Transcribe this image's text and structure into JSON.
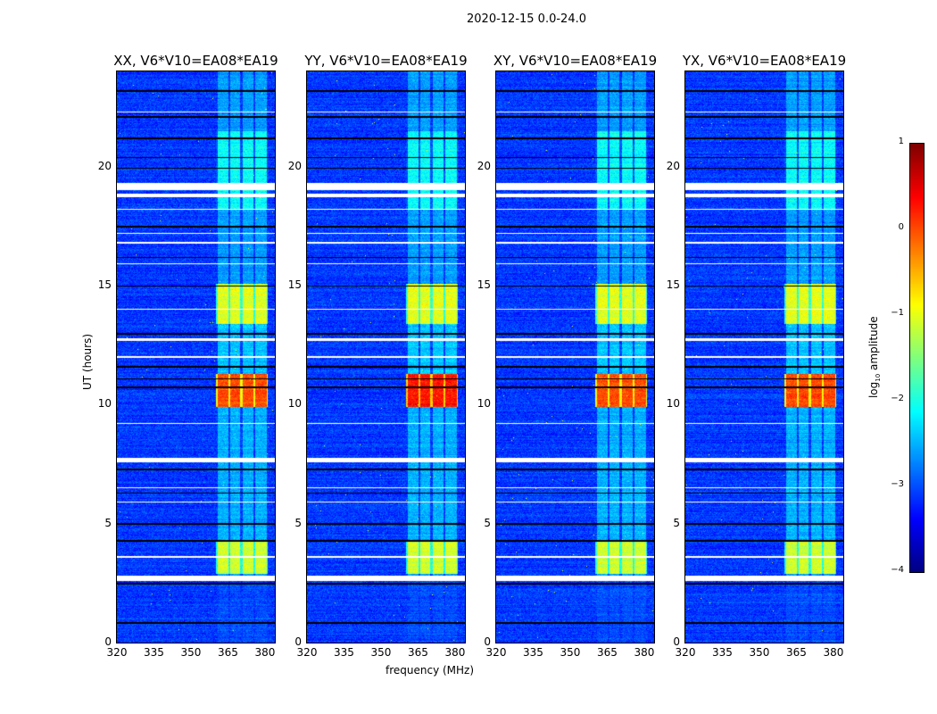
{
  "chart_data": {
    "type": "heatmap",
    "title": "2020-12-15 0.0-24.0",
    "xlabel": "frequency (MHz)",
    "ylabel": "UT (hours)",
    "xlim": [
      320,
      384
    ],
    "ylim": [
      0,
      24
    ],
    "xticks": [
      320,
      335,
      350,
      365,
      380
    ],
    "yticks": [
      0,
      5,
      10,
      15,
      20
    ],
    "colormap": "jet",
    "colorbar": {
      "label_main": "log",
      "label_sub": "10",
      "label_rest": " amplitude",
      "range": [
        -4,
        1
      ],
      "ticks": [
        "1",
        "0",
        "−1",
        "−2",
        "−3",
        "−4"
      ],
      "tick_values": [
        1,
        0,
        -1,
        -2,
        -3,
        -4
      ]
    },
    "panels": [
      {
        "title": "XX, V6*V10=EA08*EA19",
        "strong_flare": false
      },
      {
        "title": "YY, V6*V10=EA08*EA19",
        "strong_flare": true
      },
      {
        "title": "XY, V6*V10=EA08*EA19",
        "strong_flare": false
      },
      {
        "title": "YX, V6*V10=EA08*EA19",
        "strong_flare": false
      }
    ],
    "background_level": -3.1,
    "active_subbands_mhz": [
      [
        360.5,
        365
      ],
      [
        365.6,
        369.6
      ],
      [
        370.8,
        375
      ],
      [
        376,
        380.5
      ]
    ],
    "time_features": [
      {
        "ut": [
          2.9,
          4.3
        ],
        "level": -1.1
      },
      {
        "ut": [
          9.9,
          11.3
        ],
        "level": 0.0
      },
      {
        "ut": [
          13.4,
          15.1
        ],
        "level": -1.0
      },
      {
        "ut": [
          18.2,
          21.5
        ],
        "level": -2.1
      },
      {
        "ut": [
          4.3,
          9.9
        ],
        "level": -2.5
      },
      {
        "ut": [
          11.3,
          13.4
        ],
        "level": -2.4
      },
      {
        "ut": [
          15.1,
          18.2
        ],
        "level": -2.6
      },
      {
        "ut": [
          21.5,
          24
        ],
        "level": -2.6
      },
      {
        "ut": [
          0,
          2.6
        ],
        "level": -3.0
      }
    ],
    "flagged_ut": [
      [
        2.6,
        2.85
      ],
      [
        7.6,
        7.78
      ],
      [
        12.68,
        12.8
      ],
      [
        18.72,
        18.88
      ],
      [
        19.05,
        19.32
      ],
      [
        16.8,
        16.85
      ],
      [
        15.9,
        15.95
      ],
      [
        14.0,
        14.04
      ],
      [
        6.5,
        6.54
      ],
      [
        5.9,
        5.95
      ],
      [
        3.6,
        3.64
      ],
      [
        22.3,
        22.34
      ],
      [
        17.2,
        17.24
      ],
      [
        18.2,
        18.24
      ],
      [
        12.0,
        12.04
      ],
      [
        9.2,
        9.24
      ]
    ],
    "dark_ut": [
      23.2,
      22.1,
      21.2,
      20.4,
      19.95,
      17.5,
      15.0,
      11.6,
      11.1,
      10.75,
      7.3,
      6.3,
      5.0,
      4.3,
      2.5,
      0.85,
      13.0,
      16.2
    ]
  }
}
